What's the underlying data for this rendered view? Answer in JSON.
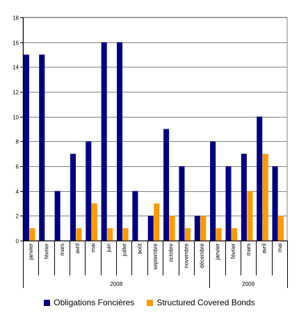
{
  "chart_data": {
    "type": "bar",
    "categories": [
      "janvier",
      "février",
      "mars",
      "avril",
      "mai",
      "juin",
      "juillet",
      "août",
      "septembre",
      "octobre",
      "novembre",
      "décembre",
      "janvier",
      "février",
      "mars",
      "avril",
      "mai"
    ],
    "groups": [
      {
        "label": "2008",
        "count": 12
      },
      {
        "label": "2009",
        "count": 5
      }
    ],
    "series": [
      {
        "name": "Obligations Foncières",
        "color": "#000080",
        "values": [
          15,
          15,
          4,
          7,
          8,
          16,
          16,
          4,
          2,
          9,
          6,
          2,
          8,
          6,
          7,
          10,
          6
        ]
      },
      {
        "name": "Structured Covered Bonds",
        "color": "#FF9900",
        "values": [
          1,
          0,
          0,
          1,
          3,
          1,
          1,
          0,
          3,
          2,
          1,
          2,
          1,
          1,
          4,
          7,
          2
        ]
      }
    ],
    "ylim": [
      0,
      18
    ],
    "yticks": [
      0,
      2,
      4,
      6,
      8,
      10,
      12,
      14,
      16,
      18
    ],
    "grid": true,
    "legend_position": "bottom"
  }
}
